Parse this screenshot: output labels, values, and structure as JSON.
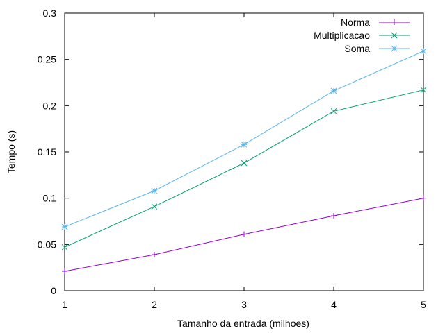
{
  "chart_data": {
    "type": "line",
    "title": "",
    "xlabel": "Tamanho da entrada (milhoes)",
    "ylabel": "Tempo (s)",
    "x": [
      1,
      2,
      3,
      4,
      5
    ],
    "xlim": [
      1,
      5
    ],
    "ylim": [
      0,
      0.3
    ],
    "xticks": [
      "1",
      "2",
      "3",
      "4",
      "5"
    ],
    "yticks": [
      "0",
      "0.05",
      "0.1",
      "0.15",
      "0.2",
      "0.25",
      "0.3"
    ],
    "grid": false,
    "legend_position": "top-right",
    "series": [
      {
        "name": "Norma",
        "color": "#9400d3",
        "marker": "plus",
        "values": [
          0.021,
          0.039,
          0.061,
          0.081,
          0.1
        ]
      },
      {
        "name": "Multiplicacao",
        "color": "#009e73",
        "marker": "cross",
        "values": [
          0.047,
          0.091,
          0.138,
          0.194,
          0.217
        ]
      },
      {
        "name": "Soma",
        "color": "#56b4e9",
        "marker": "star",
        "values": [
          0.069,
          0.108,
          0.158,
          0.216,
          0.259
        ]
      }
    ]
  }
}
